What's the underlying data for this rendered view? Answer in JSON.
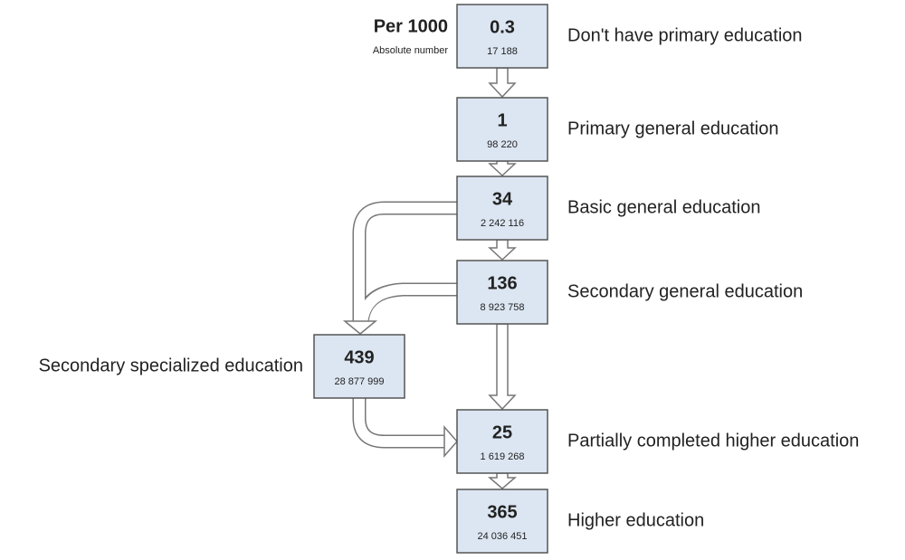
{
  "legend": {
    "title": "Per 1000",
    "subtitle": "Absolute number"
  },
  "nodes": [
    {
      "per_1000": 0.3,
      "absolute": "17 188",
      "label": "Don't have primary education"
    },
    {
      "per_1000": 1,
      "absolute": "98 220",
      "label": "Primary general education"
    },
    {
      "per_1000": 34,
      "absolute": "2 242 116",
      "label": "Basic general education"
    },
    {
      "per_1000": 136,
      "absolute": "8 923 758",
      "label": "Secondary general education"
    },
    {
      "per_1000": 439,
      "absolute": "28 877 999",
      "label": "Secondary specialized education"
    },
    {
      "per_1000": 25,
      "absolute": "1 619 268",
      "label": "Partially completed higher education"
    },
    {
      "per_1000": 365,
      "absolute": "24 036 451",
      "label": "Higher education"
    }
  ]
}
